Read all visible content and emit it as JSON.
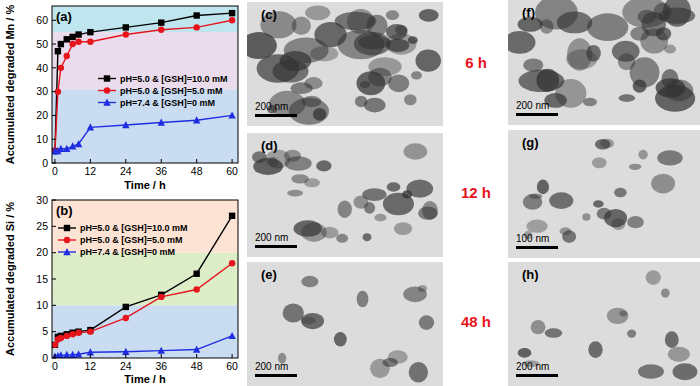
{
  "chart_data": [
    {
      "type": "line",
      "title": "(a)",
      "x_label": "Time / h",
      "y_label": "Accumulated degraded Mn / %",
      "x": [
        0,
        1,
        2,
        4,
        6,
        8,
        12,
        24,
        36,
        48,
        60
      ],
      "xlim": [
        -1,
        62
      ],
      "xticks": [
        0,
        12,
        24,
        36,
        48,
        60
      ],
      "ylim": [
        0,
        66
      ],
      "yticks": [
        0,
        10,
        20,
        30,
        40,
        50,
        60
      ],
      "grid": false,
      "legend": "center right",
      "bands": [
        {
          "from": 0,
          "to": 31,
          "color": "#c9dcf2"
        },
        {
          "from": 31,
          "to": 55,
          "color": "#eadcec"
        },
        {
          "from": 55,
          "to": 66,
          "color": "#bfe6ee"
        }
      ],
      "series": [
        {
          "name": "pH=5.0 & [GSH]=10.0 mM",
          "color": "#000000",
          "marker": "square",
          "line_style": "solid",
          "values": [
            5,
            47,
            50,
            52,
            53,
            54,
            55,
            57,
            59,
            62,
            63
          ]
        },
        {
          "name": "pH=5.0 & [GSH]=5.0 mM",
          "color": "#e8141c",
          "marker": "circle",
          "line_style": "solid",
          "values": [
            5,
            30,
            40,
            45,
            50,
            51,
            51,
            54,
            56,
            57,
            60
          ]
        },
        {
          "name": "pH=7.4 & [GSH]=0 mM",
          "color": "#1f2ee0",
          "marker": "triangle",
          "line_style": "solid",
          "values": [
            5,
            5,
            6,
            6,
            7,
            8,
            15,
            16,
            17,
            18,
            20
          ]
        }
      ]
    },
    {
      "type": "line",
      "title": "(b)",
      "x_label": "Time / h",
      "y_label": "Accumulated degraded Si / %",
      "x": [
        0,
        1,
        2,
        4,
        6,
        8,
        12,
        24,
        36,
        48,
        60
      ],
      "xlim": [
        -1,
        62
      ],
      "xticks": [
        0,
        12,
        24,
        36,
        48,
        60
      ],
      "ylim": [
        0,
        30
      ],
      "yticks": [
        0,
        5,
        10,
        15,
        20,
        25,
        30
      ],
      "grid": false,
      "legend": "upper left",
      "bands": [
        {
          "from": 0,
          "to": 10,
          "color": "#c9dcf2"
        },
        {
          "from": 10,
          "to": 20,
          "color": "#dcedc8"
        },
        {
          "from": 20,
          "to": 30,
          "color": "#fde3d3"
        }
      ],
      "series": [
        {
          "name": "pH=5.0 & [GSH]=10.0 mM",
          "color": "#000000",
          "marker": "square",
          "line_style": "solid",
          "values": [
            2.5,
            4,
            4.2,
            4.5,
            4.8,
            5,
            5.3,
            9.7,
            12,
            16,
            27
          ]
        },
        {
          "name": "pH=5.0 & [GSH]=5.0 mM",
          "color": "#e8141c",
          "marker": "circle",
          "line_style": "solid",
          "values": [
            2.5,
            3.5,
            3.8,
            4.2,
            4.5,
            4.8,
            5,
            7.6,
            11.6,
            13,
            18
          ]
        },
        {
          "name": "pH=7.4 & [GSH]=0 mM",
          "color": "#1f2ee0",
          "marker": "triangle",
          "line_style": "solid",
          "values": [
            0.3,
            0.4,
            0.5,
            0.6,
            0.6,
            0.7,
            1.1,
            1.2,
            1.4,
            1.6,
            4.2
          ]
        }
      ]
    }
  ],
  "micrographs": [
    {
      "label": "(c)",
      "scale_bar": "200 nm"
    },
    {
      "label": "(d)",
      "scale_bar": "200 nm"
    },
    {
      "label": "(e)",
      "scale_bar": "200 nm"
    },
    {
      "label": "(f)",
      "scale_bar": "200 nm"
    },
    {
      "label": "(g)",
      "scale_bar": "100 nm"
    },
    {
      "label": "(h)",
      "scale_bar": "200 nm"
    }
  ],
  "time_labels": [
    "6 h",
    "12 h",
    "48 h"
  ]
}
